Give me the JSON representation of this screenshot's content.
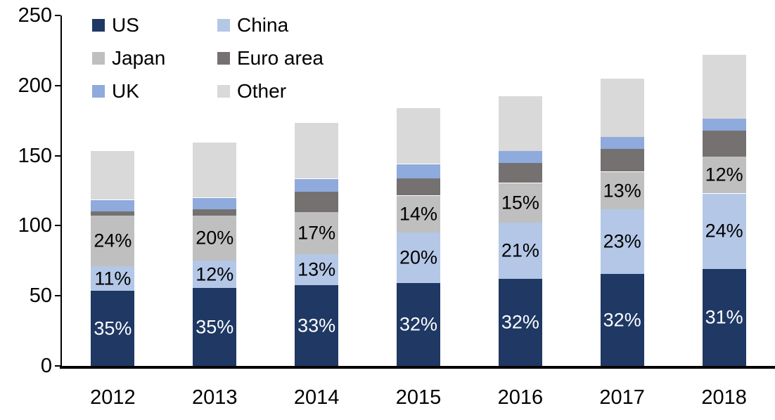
{
  "chart_data": {
    "type": "bar",
    "stacked": true,
    "title": "",
    "xlabel": "",
    "ylabel": "",
    "categories": [
      "2012",
      "2013",
      "2014",
      "2015",
      "2016",
      "2017",
      "2018"
    ],
    "series": [
      {
        "name": "US",
        "color": "#1F3864",
        "values": [
          53.5,
          55.5,
          57.5,
          59,
          62,
          65.5,
          69
        ],
        "labels": [
          "35%",
          "35%",
          "33%",
          "32%",
          "32%",
          "32%",
          "31%"
        ],
        "label_color": "#FFFFFF"
      },
      {
        "name": "China",
        "color": "#B4C7E7",
        "values": [
          17.5,
          19.5,
          22,
          36,
          40,
          46,
          54
        ],
        "labels": [
          "11%",
          "12%",
          "13%",
          "20%",
          "21%",
          "23%",
          "24%"
        ],
        "label_color": "#000000"
      },
      {
        "name": "Japan",
        "color": "#BFBFBF",
        "values": [
          36,
          32,
          30,
          26.5,
          28.5,
          27,
          26.5
        ],
        "labels": [
          "24%",
          "20%",
          "17%",
          "14%",
          "15%",
          "13%",
          "12%"
        ],
        "label_color": "#000000"
      },
      {
        "name": "Euro area",
        "color": "#757171",
        "values": [
          3.5,
          5,
          15,
          12.5,
          14.5,
          16.5,
          18.5
        ]
      },
      {
        "name": "UK",
        "color": "#8FAADC",
        "values": [
          8,
          8,
          9,
          10,
          8.5,
          8.5,
          8.5
        ]
      },
      {
        "name": "Other",
        "color": "#D9D9D9",
        "values": [
          35,
          39.5,
          40,
          40,
          39,
          41.5,
          45.5
        ]
      }
    ],
    "totals_approx": [
      153.5,
      159.5,
      173.5,
      184,
      192.5,
      205,
      222
    ],
    "y_axis": {
      "min": 0,
      "max": 250,
      "step": 50,
      "ticks": [
        "0",
        "50",
        "100",
        "150",
        "200",
        "250"
      ]
    },
    "grid": false,
    "legend": {
      "position": "top-left",
      "columns": 2,
      "entries": [
        "US",
        "China",
        "Japan",
        "Euro area",
        "UK",
        "Other"
      ]
    },
    "axis_color": "#000000",
    "background_color": "#FFFFFF"
  }
}
